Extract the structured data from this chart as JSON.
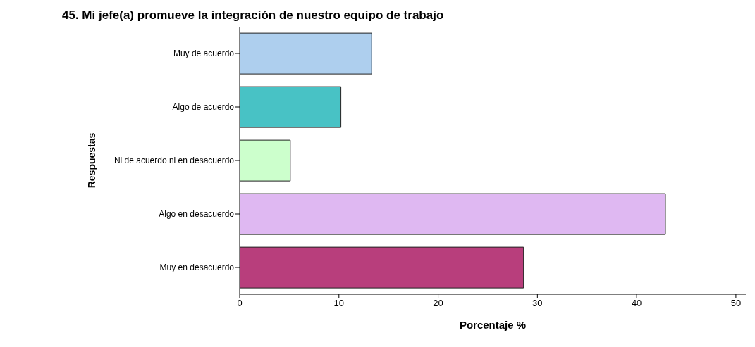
{
  "chart_data": {
    "type": "bar",
    "orientation": "horizontal",
    "title": "45. Mi jefe(a) promueve la integración de nuestro equipo de trabajo",
    "xlabel": "Porcentaje %",
    "ylabel": "Respuestas",
    "categories": [
      "Muy de acuerdo",
      "Algo de acuerdo",
      "Ni de acuerdo ni en desacuerdo",
      "Algo en desacuerdo",
      "Muy en desacuerdo"
    ],
    "values": [
      13.3,
      10.2,
      5.1,
      42.9,
      28.6
    ],
    "colors": [
      "#aecfee",
      "#48c2c5",
      "#ccffcc",
      "#dfb8f2",
      "#b83e7c"
    ],
    "xlim": [
      0,
      51
    ],
    "xticks": [
      0,
      10,
      20,
      30,
      40,
      50
    ]
  }
}
